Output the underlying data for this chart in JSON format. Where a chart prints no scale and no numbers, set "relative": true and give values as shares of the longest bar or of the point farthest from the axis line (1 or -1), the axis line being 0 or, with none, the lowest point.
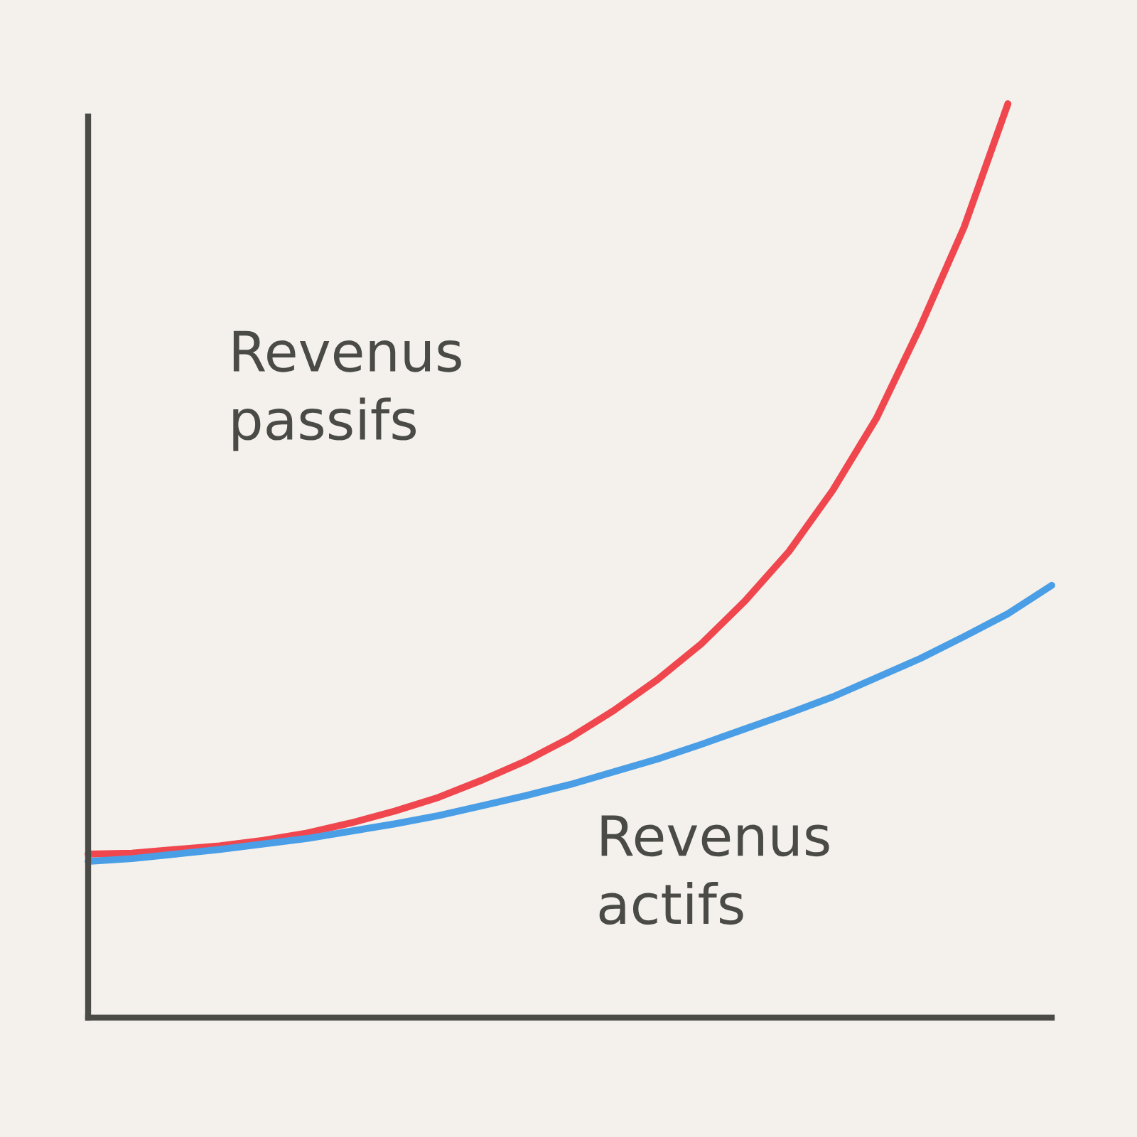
{
  "chart_data": {
    "type": "line",
    "relative": true,
    "categories": [
      null,
      null,
      null,
      null,
      null,
      null,
      null,
      null,
      null,
      null,
      null,
      null,
      null,
      null,
      null,
      null,
      null,
      null,
      null,
      null,
      null,
      null,
      null
    ],
    "series": [
      {
        "color": "#f0474f",
        "values": [
          0.179,
          0.18,
          0.184,
          0.188,
          0.194,
          0.202,
          0.213,
          0.226,
          0.241,
          0.26,
          0.281,
          0.306,
          0.336,
          0.37,
          0.409,
          0.456,
          0.51,
          0.577,
          0.656,
          0.756,
          0.865,
          1.0,
          null
        ]
      },
      {
        "color": "#4a9ee6",
        "values": [
          0.171,
          0.174,
          0.179,
          0.184,
          0.19,
          0.196,
          0.204,
          0.212,
          0.221,
          0.232,
          0.243,
          0.255,
          0.269,
          0.283,
          0.299,
          0.316,
          0.333,
          0.351,
          0.372,
          0.393,
          0.417,
          0.442,
          0.473
        ]
      }
    ],
    "annotations": [
      "Revenus\npassifs",
      "Revenus\nactifs"
    ],
    "grid": false,
    "legend": false,
    "marker": "none",
    "line_style": "solid"
  }
}
